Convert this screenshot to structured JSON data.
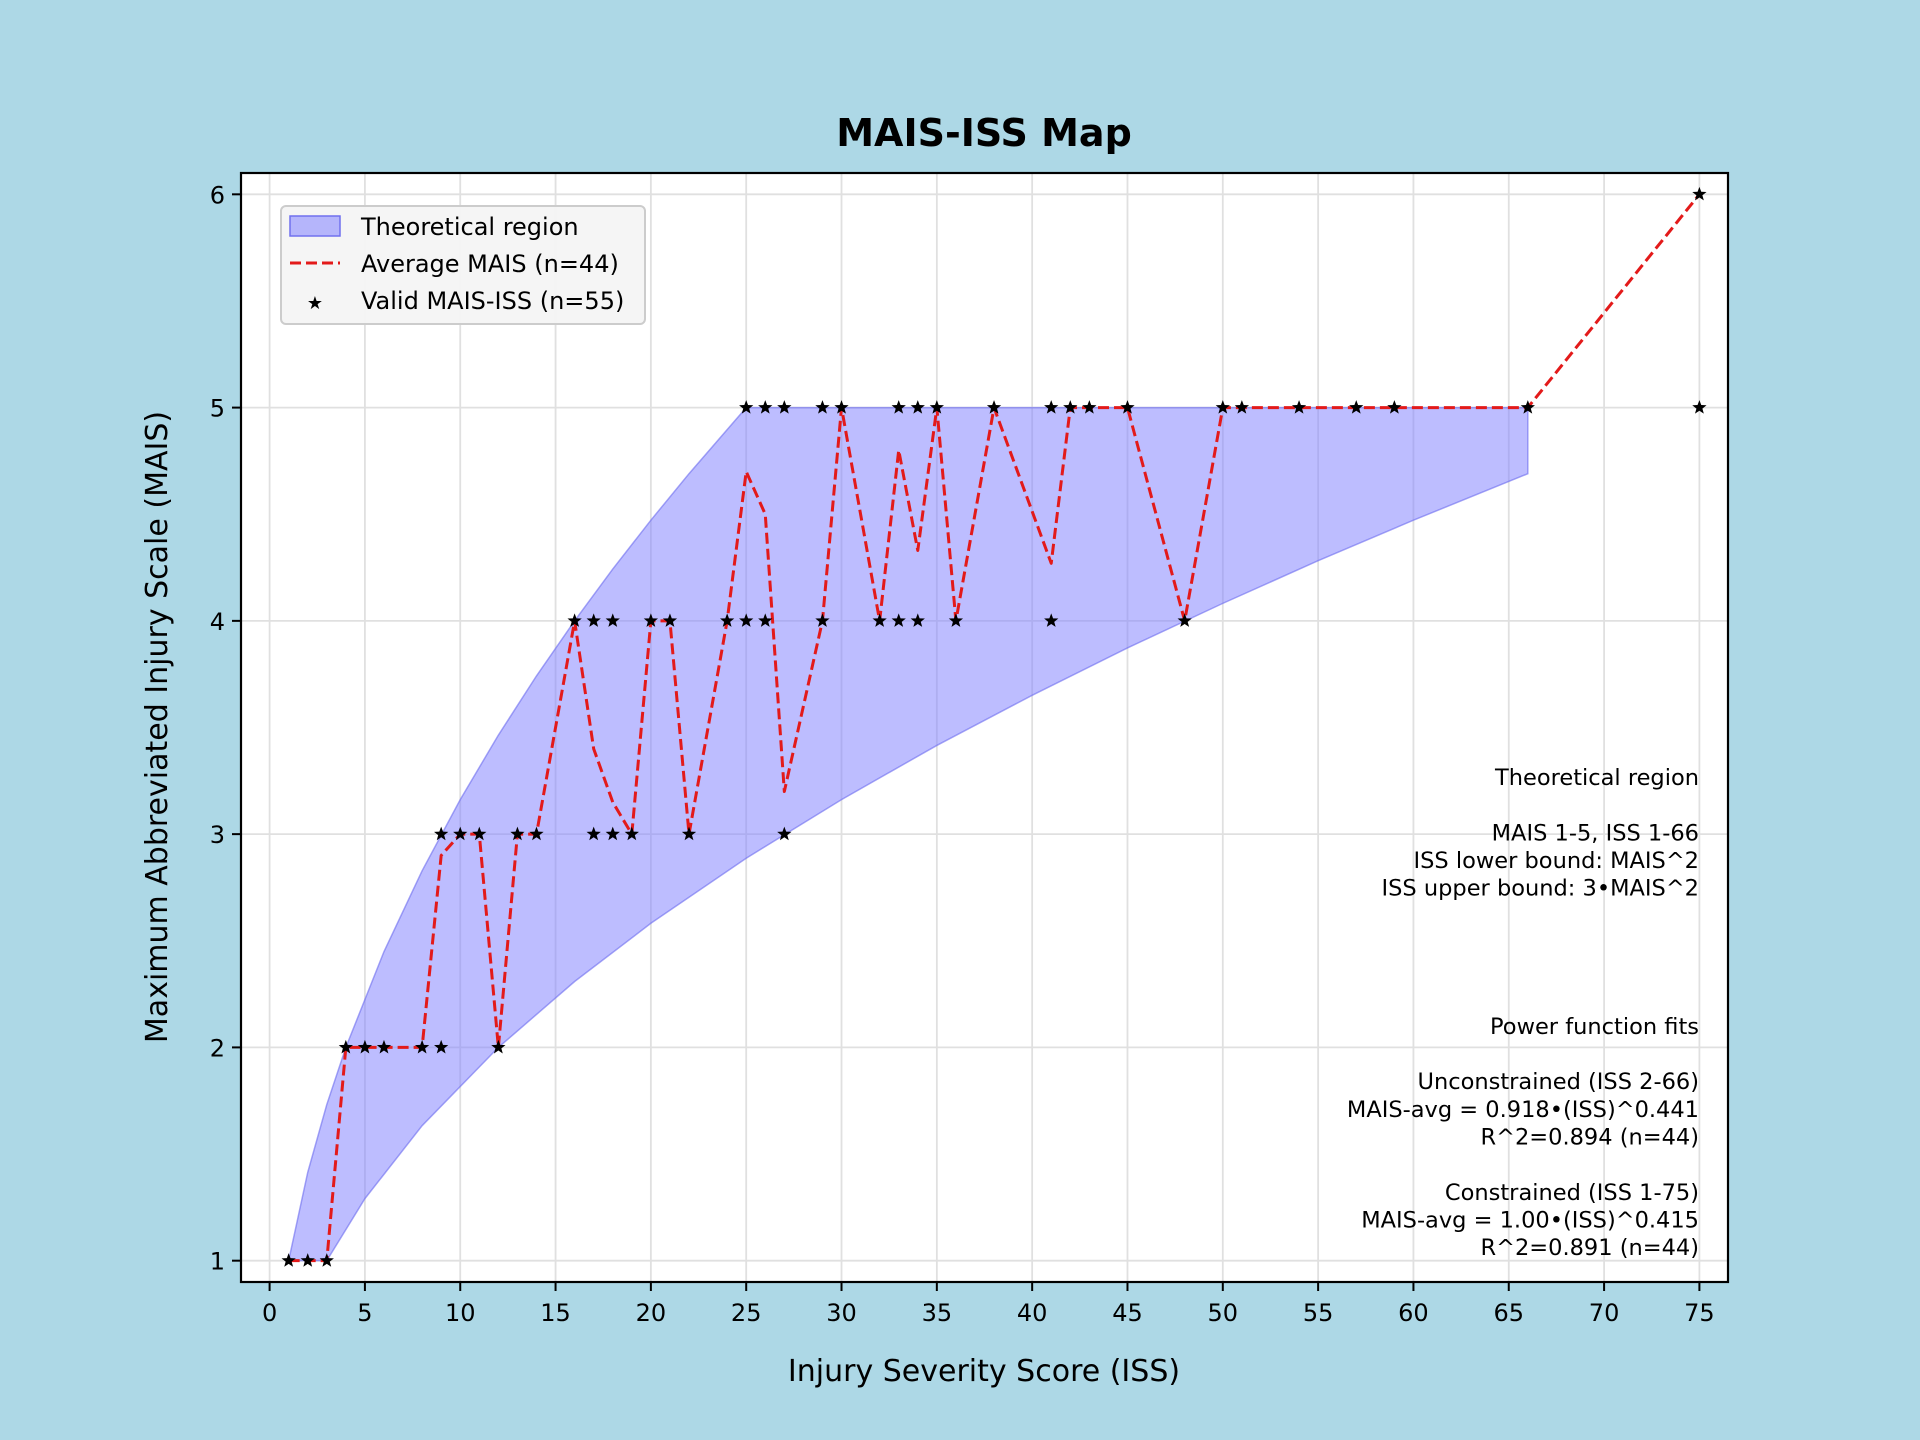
{
  "chart_data": {
    "type": "line",
    "title": "MAIS-ISS Map",
    "xlabel": "Injury Severity Score (ISS)",
    "ylabel": "Maximum Abbreviated Injury Scale (MAIS)",
    "xlim": [
      -1.5,
      76.5
    ],
    "ylim": [
      0.9,
      6.1
    ],
    "xticks": [
      0,
      5,
      10,
      15,
      20,
      25,
      30,
      35,
      40,
      45,
      50,
      55,
      60,
      65,
      70,
      75
    ],
    "yticks": [
      1,
      2,
      3,
      4,
      5,
      6
    ],
    "grid": true,
    "legend": {
      "placement": "top-left",
      "entries": [
        "Theoretical region",
        "Average MAIS (n=44)",
        "Valid MAIS-ISS (n=55)"
      ]
    },
    "region": {
      "name": "Theoretical region",
      "color": "#8080ff",
      "upper": [
        [
          1,
          1
        ],
        [
          2,
          1.414
        ],
        [
          3,
          1.732
        ],
        [
          4,
          2
        ],
        [
          6,
          2.449
        ],
        [
          8,
          2.828
        ],
        [
          10,
          3.162
        ],
        [
          12,
          3.464
        ],
        [
          14,
          3.742
        ],
        [
          16,
          4
        ],
        [
          18,
          4.243
        ],
        [
          20,
          4.472
        ],
        [
          22,
          4.69
        ],
        [
          25,
          5
        ],
        [
          66,
          5
        ]
      ],
      "lower": [
        [
          3,
          1
        ],
        [
          5,
          1.291
        ],
        [
          8,
          1.633
        ],
        [
          12,
          2
        ],
        [
          16,
          2.309
        ],
        [
          20,
          2.582
        ],
        [
          25,
          2.887
        ],
        [
          30,
          3.162
        ],
        [
          35,
          3.416
        ],
        [
          40,
          3.651
        ],
        [
          45,
          3.873
        ],
        [
          50,
          4.082
        ],
        [
          55,
          4.282
        ],
        [
          60,
          4.472
        ],
        [
          66,
          4.69
        ]
      ]
    },
    "series": [
      {
        "name": "Average MAIS (n=44)",
        "color": "#e31a1a",
        "style": "dashed",
        "x": [
          1,
          2,
          3,
          4,
          5,
          6,
          8,
          9,
          10,
          11,
          12,
          13,
          14,
          16,
          17,
          18,
          19,
          20,
          21,
          22,
          24,
          25,
          26,
          27,
          29,
          30,
          32,
          33,
          34,
          35,
          36,
          38,
          41,
          42,
          43,
          45,
          48,
          50,
          51,
          54,
          57,
          59,
          66,
          75
        ],
        "y": [
          1,
          1,
          1,
          2,
          2,
          2,
          2,
          2.9,
          3,
          3,
          2,
          3,
          3,
          4,
          3.4,
          3.15,
          3,
          4,
          4,
          3,
          4,
          4.7,
          4.5,
          3.2,
          4,
          5,
          4,
          4.8,
          4.33,
          5,
          4,
          5,
          4.27,
          5,
          5,
          5,
          4,
          5,
          5,
          5,
          5,
          5,
          5,
          6
        ]
      }
    ],
    "points": {
      "name": "Valid MAIS-ISS (n=55)",
      "color": "#000000",
      "x": [
        1,
        2,
        3,
        4,
        5,
        6,
        8,
        9,
        9,
        10,
        11,
        12,
        13,
        14,
        16,
        17,
        17,
        18,
        18,
        19,
        20,
        21,
        22,
        24,
        25,
        25,
        26,
        26,
        27,
        27,
        29,
        29,
        30,
        32,
        33,
        33,
        34,
        34,
        35,
        36,
        38,
        41,
        41,
        42,
        43,
        45,
        48,
        50,
        51,
        54,
        57,
        59,
        66,
        75,
        75
      ],
      "y": [
        1,
        1,
        1,
        2,
        2,
        2,
        2,
        2,
        3,
        3,
        3,
        2,
        3,
        3,
        4,
        3,
        4,
        3,
        4,
        3,
        4,
        4,
        3,
        4,
        4,
        5,
        4,
        5,
        3,
        5,
        4,
        5,
        5,
        4,
        4,
        5,
        4,
        5,
        5,
        4,
        5,
        4,
        5,
        5,
        5,
        5,
        4,
        5,
        5,
        5,
        5,
        5,
        5,
        5,
        6
      ]
    },
    "annotations": [
      "Theoretical region",
      "",
      "MAIS 1-5, ISS 1-66",
      "ISS lower bound: MAIS^2",
      "ISS upper bound: 3•MAIS^2",
      "",
      "",
      "",
      "",
      "Power function fits",
      "",
      "Unconstrained (ISS 2-66)",
      "MAIS-avg = 0.918•(ISS)^0.441",
      "R^2=0.894 (n=44)",
      "",
      "Constrained (ISS 1-75)",
      "MAIS-avg = 1.00•(ISS)^0.415",
      "R^2=0.891 (n=44)"
    ]
  }
}
